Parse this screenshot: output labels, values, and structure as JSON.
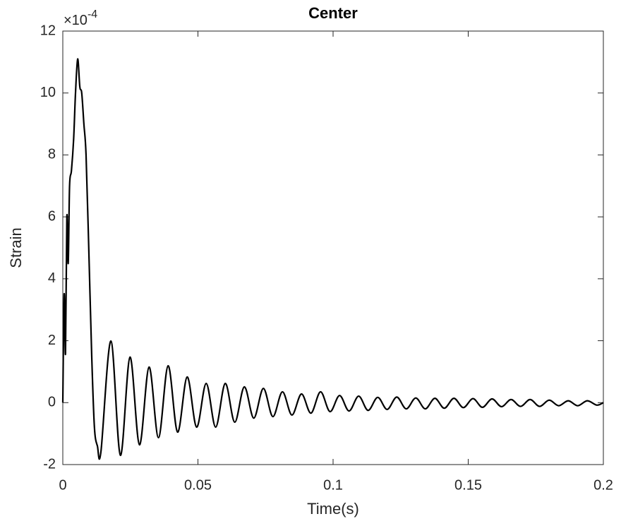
{
  "chart_data": {
    "type": "line",
    "title": "Center",
    "xlabel": "Time(s)",
    "ylabel": "Strain",
    "y_multiplier": {
      "base": "×10",
      "exponent": "-4"
    },
    "xlim": [
      0,
      0.2
    ],
    "xticks": [
      0,
      0.05,
      0.1,
      0.15,
      0.2
    ],
    "ylim": [
      -2,
      12
    ],
    "yticks": [
      -2,
      0,
      2,
      4,
      6,
      8,
      10,
      12
    ],
    "series": [
      {
        "color": "#000000",
        "x": [
          0,
          0.0005,
          0.001,
          0.0015,
          0.002,
          0.0025,
          0.0032,
          0.004,
          0.0047,
          0.0055,
          0.0063,
          0.007,
          0.0078,
          0.0086,
          0.0096,
          0.0107,
          0.0117,
          0.0128,
          0.0141,
          0.0178,
          0.0213,
          0.02485,
          0.02835,
          0.0319,
          0.0354,
          0.03895,
          0.04245,
          0.046,
          0.0495,
          0.05305,
          0.05655,
          0.0601,
          0.0636,
          0.06715,
          0.07065,
          0.0742,
          0.0777,
          0.08125,
          0.08475,
          0.0883,
          0.0918,
          0.09535,
          0.09885,
          0.1024,
          0.1059,
          0.10945,
          0.11295,
          0.1165,
          0.12,
          0.12355,
          0.12705,
          0.1306,
          0.1341,
          0.13765,
          0.14115,
          0.1447,
          0.1482,
          0.15175,
          0.15525,
          0.1588,
          0.1623,
          0.16585,
          0.16935,
          0.1729,
          0.1764,
          0.17995,
          0.18345,
          0.187,
          0.1905,
          0.19405,
          0.19755,
          0.2
        ],
        "values": [
          0,
          3.5,
          1.6,
          6,
          4.5,
          7,
          7.5,
          8.5,
          10,
          11.1,
          10.2,
          10,
          9,
          8,
          5,
          1.5,
          -0.8,
          -1.4,
          -1.59,
          1.99,
          -1.7,
          1.47,
          -1.36,
          1.15,
          -1.13,
          1.19,
          -0.95,
          0.83,
          -0.79,
          0.62,
          -0.79,
          0.62,
          -0.63,
          0.51,
          -0.5,
          0.46,
          -0.45,
          0.35,
          -0.4,
          0.28,
          -0.34,
          0.35,
          -0.29,
          0.23,
          -0.27,
          0.21,
          -0.25,
          0.17,
          -0.22,
          0.18,
          -0.2,
          0.15,
          -0.2,
          0.14,
          -0.18,
          0.14,
          -0.16,
          0.13,
          -0.15,
          0.12,
          -0.13,
          0.1,
          -0.12,
          0.1,
          -0.12,
          0.08,
          -0.1,
          0.06,
          -0.1,
          0.06,
          -0.08,
          0
        ]
      }
    ]
  }
}
